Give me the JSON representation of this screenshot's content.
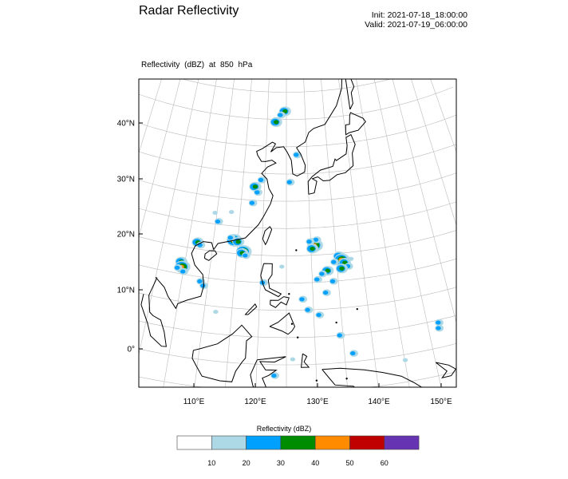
{
  "header": {
    "title": "Radar Reflectivity",
    "init": "Init: 2021-07-18_18:00:00",
    "valid": "Valid: 2021-07-19_06:00:00",
    "subtitle": "Reflectivity   (dBZ)    at   850 hPa"
  },
  "map": {
    "lat_labels": [
      "40°N",
      "30°N",
      "20°N",
      "10°N",
      "0°"
    ],
    "lat_values": [
      40,
      30,
      20,
      10,
      0
    ],
    "lon_labels": [
      "110°E",
      "120°E",
      "130°E",
      "140°E",
      "150°E"
    ],
    "lon_values": [
      110,
      120,
      130,
      140,
      150
    ],
    "echo_cells": [
      [
        130.5,
        22.3,
        35
      ],
      [
        130.8,
        21.8,
        45
      ],
      [
        131.2,
        22.8,
        25
      ],
      [
        129.8,
        22.5,
        20
      ],
      [
        130.2,
        21.2,
        30
      ],
      [
        135.5,
        19.5,
        35
      ],
      [
        136,
        18.8,
        45
      ],
      [
        136.5,
        18.2,
        35
      ],
      [
        137.2,
        17.5,
        25
      ],
      [
        135.8,
        17.2,
        30
      ],
      [
        134.5,
        18.5,
        20
      ],
      [
        137.8,
        18.8,
        15
      ],
      [
        133,
        17,
        35
      ],
      [
        132,
        16.5,
        25
      ],
      [
        134,
        15,
        25
      ],
      [
        131,
        15.5,
        20
      ],
      [
        132.5,
        13,
        20
      ],
      [
        114.2,
        22.4,
        45
      ],
      [
        115,
        22.2,
        35
      ],
      [
        113.5,
        22.8,
        25
      ],
      [
        116.3,
        20.5,
        45
      ],
      [
        116,
        20.2,
        35
      ],
      [
        116.8,
        19.8,
        25
      ],
      [
        104.2,
        17.2,
        35
      ],
      [
        104.6,
        16.3,
        45
      ],
      [
        105,
        15.5,
        25
      ],
      [
        103.8,
        16,
        20
      ],
      [
        106.8,
        21.2,
        35
      ],
      [
        107.5,
        20.8,
        20
      ],
      [
        108.5,
        14.2,
        25
      ],
      [
        109.2,
        13.5,
        20
      ],
      [
        112,
        9,
        15
      ],
      [
        117.8,
        32.5,
        35
      ],
      [
        118.5,
        31.5,
        25
      ],
      [
        117.5,
        29.5,
        20
      ],
      [
        119.2,
        33.8,
        20
      ],
      [
        122.2,
        44.5,
        35
      ],
      [
        124.5,
        46.5,
        35
      ],
      [
        123.5,
        45.8,
        25
      ],
      [
        127.5,
        38.5,
        20
      ],
      [
        125.8,
        33.5,
        20
      ],
      [
        110.5,
        25.5,
        20
      ],
      [
        109.5,
        27,
        15
      ],
      [
        113,
        27.5,
        15
      ],
      [
        128,
        12,
        20
      ],
      [
        129,
        10,
        25
      ],
      [
        131,
        9,
        20
      ],
      [
        134.5,
        5,
        20
      ],
      [
        136.5,
        1.5,
        25
      ],
      [
        126,
        1,
        15
      ],
      [
        123,
        -2,
        20
      ],
      [
        152,
        4.5,
        25
      ],
      [
        151.8,
        3.5,
        20
      ],
      [
        145,
        -1,
        15
      ],
      [
        120.5,
        15,
        20
      ],
      [
        124,
        18,
        15
      ]
    ]
  },
  "colorbar": {
    "title": "Reflectivity  (dBZ)",
    "levels": [
      "10",
      "20",
      "30",
      "40",
      "50",
      "60"
    ],
    "colors": [
      "#ffffff",
      "#add8e6",
      "#00a0ff",
      "#008c00",
      "#ff8c00",
      "#c00000",
      "#6633b3"
    ]
  }
}
